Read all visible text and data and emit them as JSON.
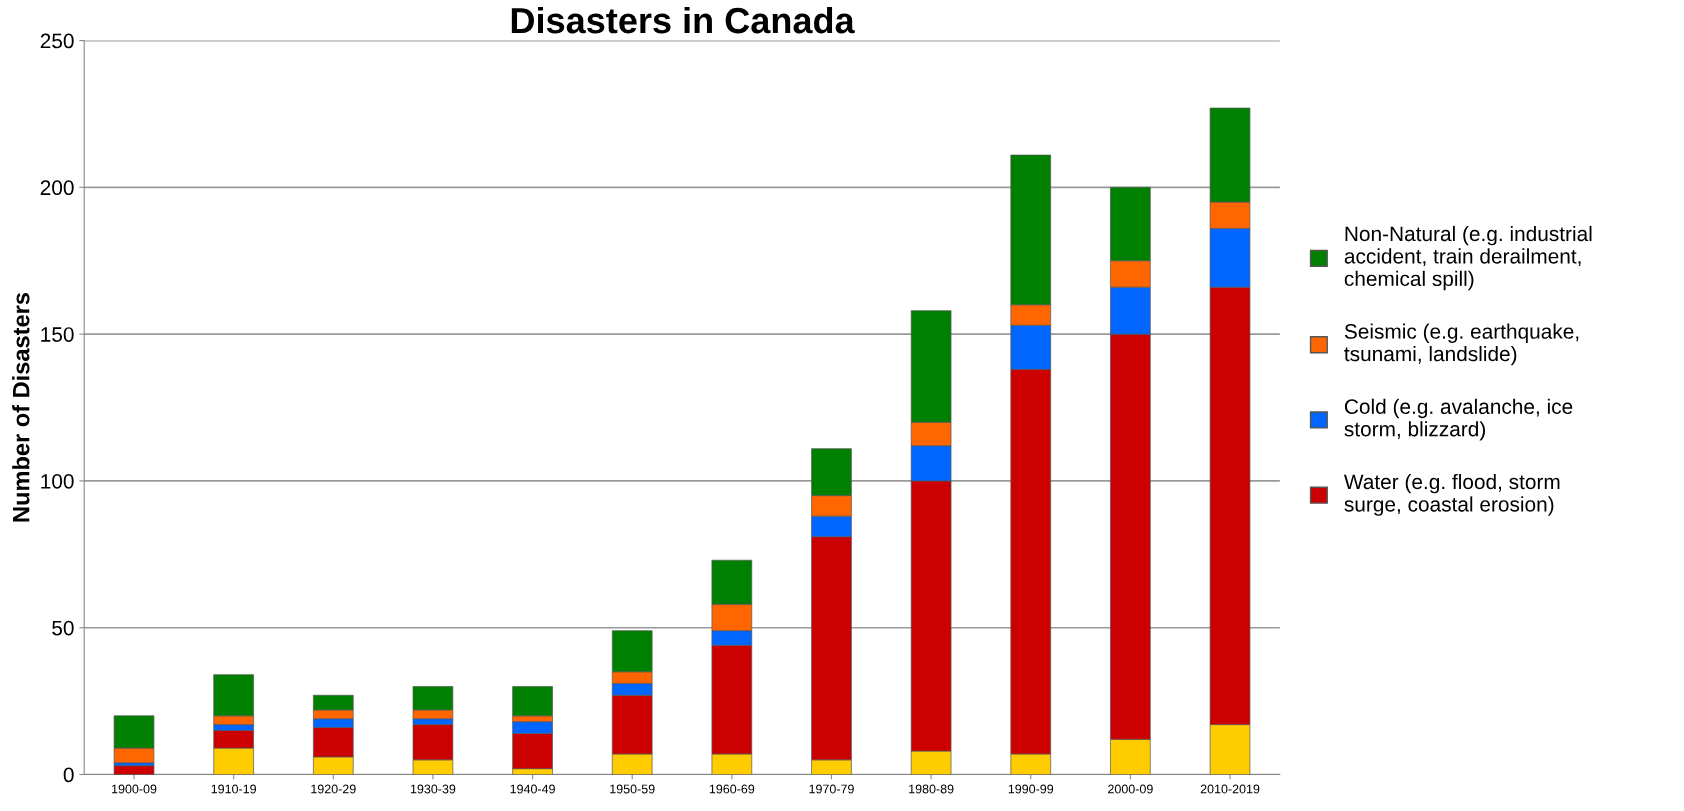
{
  "chart_data": {
    "type": "bar",
    "title": "Disasters in Canada",
    "ylabel": "Number of Disasters",
    "categories": [
      "1900-09",
      "1910-19",
      "1920-29",
      "1930-39",
      "1940-49",
      "1950-59",
      "1960-69",
      "1970-79",
      "1980-89",
      "1990-99",
      "2000-09",
      "2010-2019"
    ],
    "stacked": true,
    "ylim": [
      0,
      250
    ],
    "yticks": [
      0,
      50,
      100,
      150,
      200,
      250
    ],
    "grid": "y",
    "legend": "right",
    "series": [
      {
        "color": "#ffcc00",
        "values": [
          0,
          9,
          6,
          5,
          2,
          7,
          7,
          5,
          8,
          7,
          12,
          17
        ]
      },
      {
        "name": "Water (e.g. flood, storm surge, coastal erosion)",
        "color": "#cc0000",
        "values": [
          3,
          6,
          10,
          12,
          12,
          20,
          37,
          76,
          92,
          131,
          138,
          149
        ]
      },
      {
        "name": "Cold (e.g. avalanche, ice storm, blizzard)",
        "color": "#0066ff",
        "values": [
          1,
          2,
          3,
          2,
          4,
          4,
          5,
          7,
          12,
          15,
          16,
          20
        ]
      },
      {
        "name": "Seismic (e.g. earthquake, tsunami, landslide)",
        "color": "#ff6600",
        "values": [
          5,
          3,
          3,
          3,
          2,
          4,
          9,
          7,
          8,
          7,
          9,
          9
        ]
      },
      {
        "name": "Non-Natural (e.g. industrial accident, train derailment, chemical spill)",
        "color": "#008000",
        "values": [
          11,
          14,
          5,
          8,
          10,
          14,
          15,
          16,
          38,
          51,
          25,
          32
        ]
      }
    ]
  }
}
